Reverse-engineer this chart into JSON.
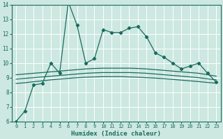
{
  "bg_color": "#cce8e0",
  "grid_color": "#ffffff",
  "line_color": "#1a6b60",
  "xlabel": "Humidex (Indice chaleur)",
  "xlim": [
    -0.5,
    23.5
  ],
  "ylim": [
    6,
    14
  ],
  "xticks": [
    0,
    1,
    2,
    3,
    4,
    5,
    6,
    7,
    8,
    9,
    10,
    11,
    12,
    13,
    14,
    15,
    16,
    17,
    18,
    19,
    20,
    21,
    22,
    23
  ],
  "yticks": [
    6,
    7,
    8,
    9,
    10,
    11,
    12,
    13,
    14
  ],
  "series1_x": [
    0,
    1,
    2,
    3,
    4,
    5,
    6,
    7,
    8,
    9,
    10,
    11,
    12,
    13,
    14,
    15,
    16,
    17,
    18,
    19,
    20,
    21,
    22,
    23
  ],
  "series1_y": [
    6.0,
    6.7,
    8.5,
    8.6,
    10.0,
    9.3,
    14.2,
    12.6,
    10.0,
    10.3,
    12.3,
    12.1,
    12.1,
    12.4,
    12.5,
    11.8,
    10.7,
    10.4,
    10.0,
    9.6,
    9.8,
    10.0,
    9.3,
    8.7
  ],
  "series2_x": [
    0,
    1,
    2,
    3,
    4,
    5,
    6,
    7,
    8,
    9,
    10,
    11,
    12,
    13,
    14,
    15,
    16,
    17,
    18,
    19,
    20,
    21,
    22,
    23
  ],
  "series2_y": [
    9.2,
    9.25,
    9.3,
    9.35,
    9.4,
    9.45,
    9.5,
    9.55,
    9.6,
    9.63,
    9.65,
    9.65,
    9.65,
    9.65,
    9.63,
    9.6,
    9.55,
    9.5,
    9.45,
    9.4,
    9.35,
    9.3,
    9.2,
    9.1
  ],
  "series3_x": [
    0,
    1,
    2,
    3,
    4,
    5,
    6,
    7,
    8,
    9,
    10,
    11,
    12,
    13,
    14,
    15,
    16,
    17,
    18,
    19,
    20,
    21,
    22,
    23
  ],
  "series3_y": [
    8.9,
    8.95,
    9.0,
    9.05,
    9.1,
    9.15,
    9.2,
    9.25,
    9.3,
    9.33,
    9.35,
    9.35,
    9.35,
    9.35,
    9.33,
    9.3,
    9.25,
    9.2,
    9.15,
    9.1,
    9.05,
    9.0,
    8.92,
    8.85
  ],
  "series4_x": [
    0,
    1,
    2,
    3,
    4,
    5,
    6,
    7,
    8,
    9,
    10,
    11,
    12,
    13,
    14,
    15,
    16,
    17,
    18,
    19,
    20,
    21,
    22,
    23
  ],
  "series4_y": [
    8.6,
    8.65,
    8.72,
    8.78,
    8.85,
    8.9,
    8.95,
    9.0,
    9.03,
    9.05,
    9.07,
    9.07,
    9.07,
    9.05,
    9.03,
    9.0,
    8.97,
    8.93,
    8.88,
    8.83,
    8.78,
    8.73,
    8.67,
    8.62
  ]
}
